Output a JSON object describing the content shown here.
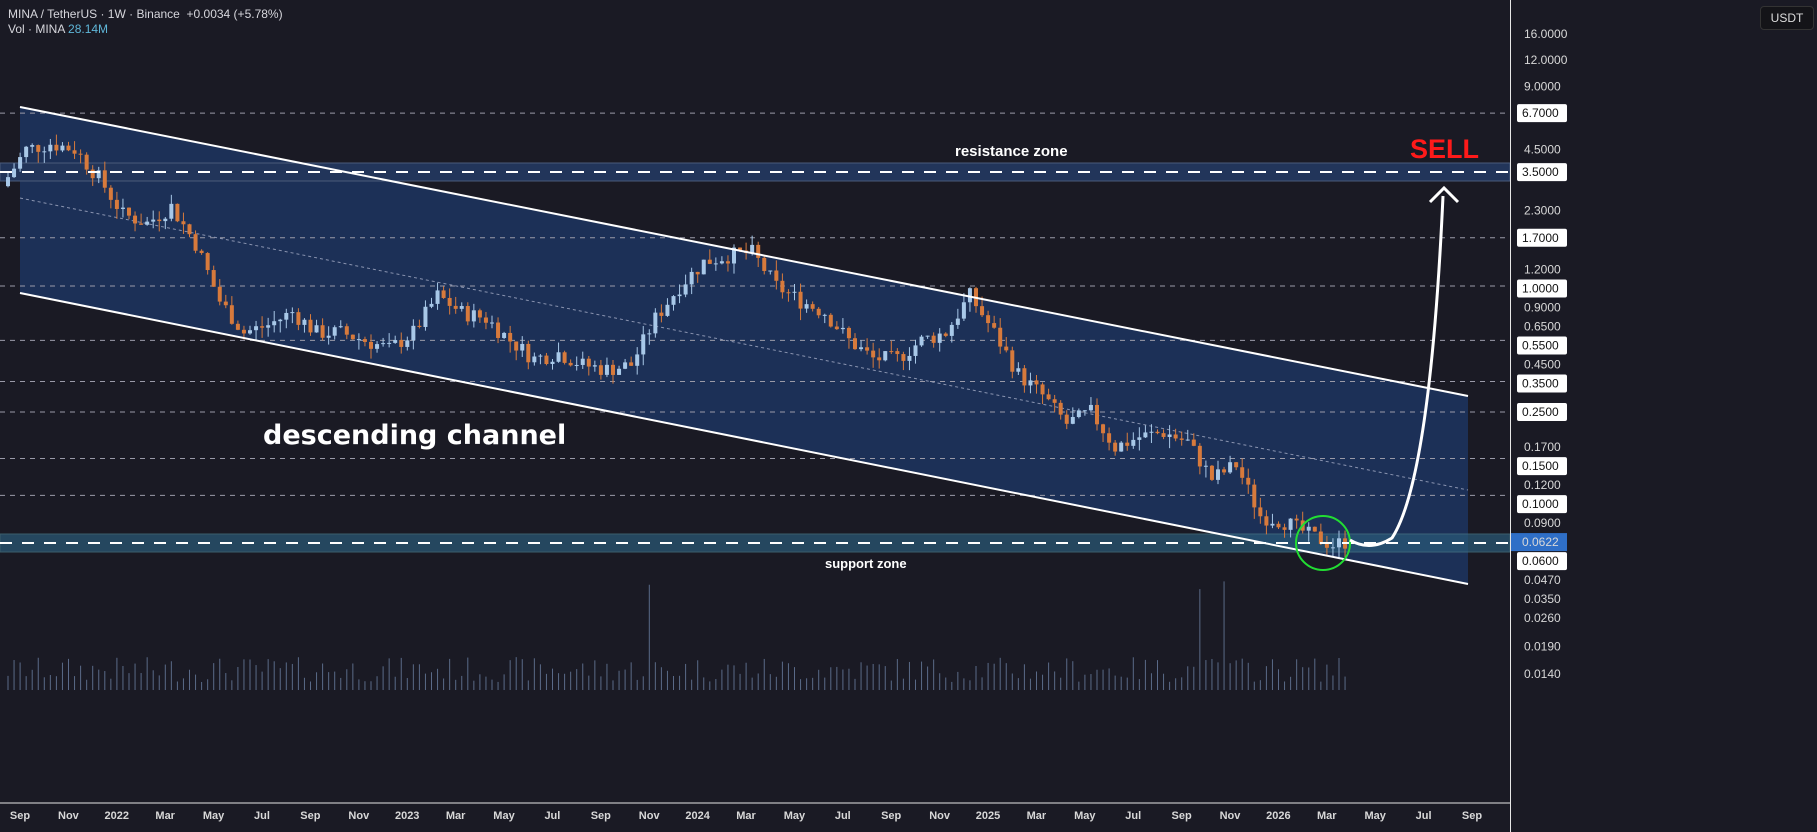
{
  "header": {
    "symbol_line": "MINA / TetherUS · 1W · Binance",
    "change": "+0.0034 (+5.78%)",
    "vol_label": "Vol · MINA",
    "vol_value": "28.14M"
  },
  "currency_button": "USDT",
  "colors": {
    "up": "#a8c8e8",
    "down": "#d77a3c",
    "channel": "#1d3560",
    "sell": "#ff1a1a",
    "circle": "#22dd33",
    "last": "#2f6fc7"
  },
  "chart_data": {
    "type": "candlestick",
    "scale": "log",
    "ylim": [
      0.0115,
      20
    ],
    "y_ticks": [
      16,
      12,
      9,
      4.5,
      2.3,
      1.2,
      0.9,
      0.65,
      0.45,
      0.17,
      0.12,
      0.09,
      0.047,
      0.035,
      0.026,
      0.019,
      0.014
    ],
    "level_labels": [
      "6.7000",
      "3.5000",
      "1.7000",
      "1.0000",
      "0.5500",
      "0.3500",
      "0.2500",
      "0.1500",
      "0.1000",
      "0.0600"
    ],
    "last_price": "0.0622",
    "x_ticks": [
      "Sep",
      "Nov",
      "2022",
      "Mar",
      "May",
      "Jul",
      "Sep",
      "Nov",
      "2023",
      "Mar",
      "May",
      "Jul",
      "Sep",
      "Nov",
      "2024",
      "Mar",
      "May",
      "Jul",
      "Sep",
      "Nov",
      "2025",
      "Mar",
      "May",
      "Jul",
      "Sep",
      "Nov",
      "2026",
      "Mar",
      "May",
      "Jul",
      "Sep"
    ],
    "monthly_closes_from_sep_2021": [
      4.5,
      4.8,
      4.5,
      3.3,
      2.2,
      2.0,
      2.4,
      1.6,
      0.85,
      0.6,
      0.65,
      0.75,
      0.6,
      0.6,
      0.55,
      0.5,
      0.6,
      0.9,
      0.75,
      0.7,
      0.55,
      0.45,
      0.48,
      0.42,
      0.4,
      0.42,
      0.7,
      1.0,
      1.3,
      1.4,
      1.45,
      1.0,
      0.85,
      0.75,
      0.55,
      0.45,
      0.45,
      0.55,
      0.6,
      0.9,
      0.6,
      0.38,
      0.3,
      0.22,
      0.25,
      0.17,
      0.19,
      0.2,
      0.18,
      0.12,
      0.14,
      0.08,
      0.075,
      0.065,
      0.058,
      0.0622
    ],
    "annotations": {
      "resistance": "resistance zone",
      "support": "support zone",
      "channel": "descending channel",
      "signal": "SELL"
    }
  }
}
